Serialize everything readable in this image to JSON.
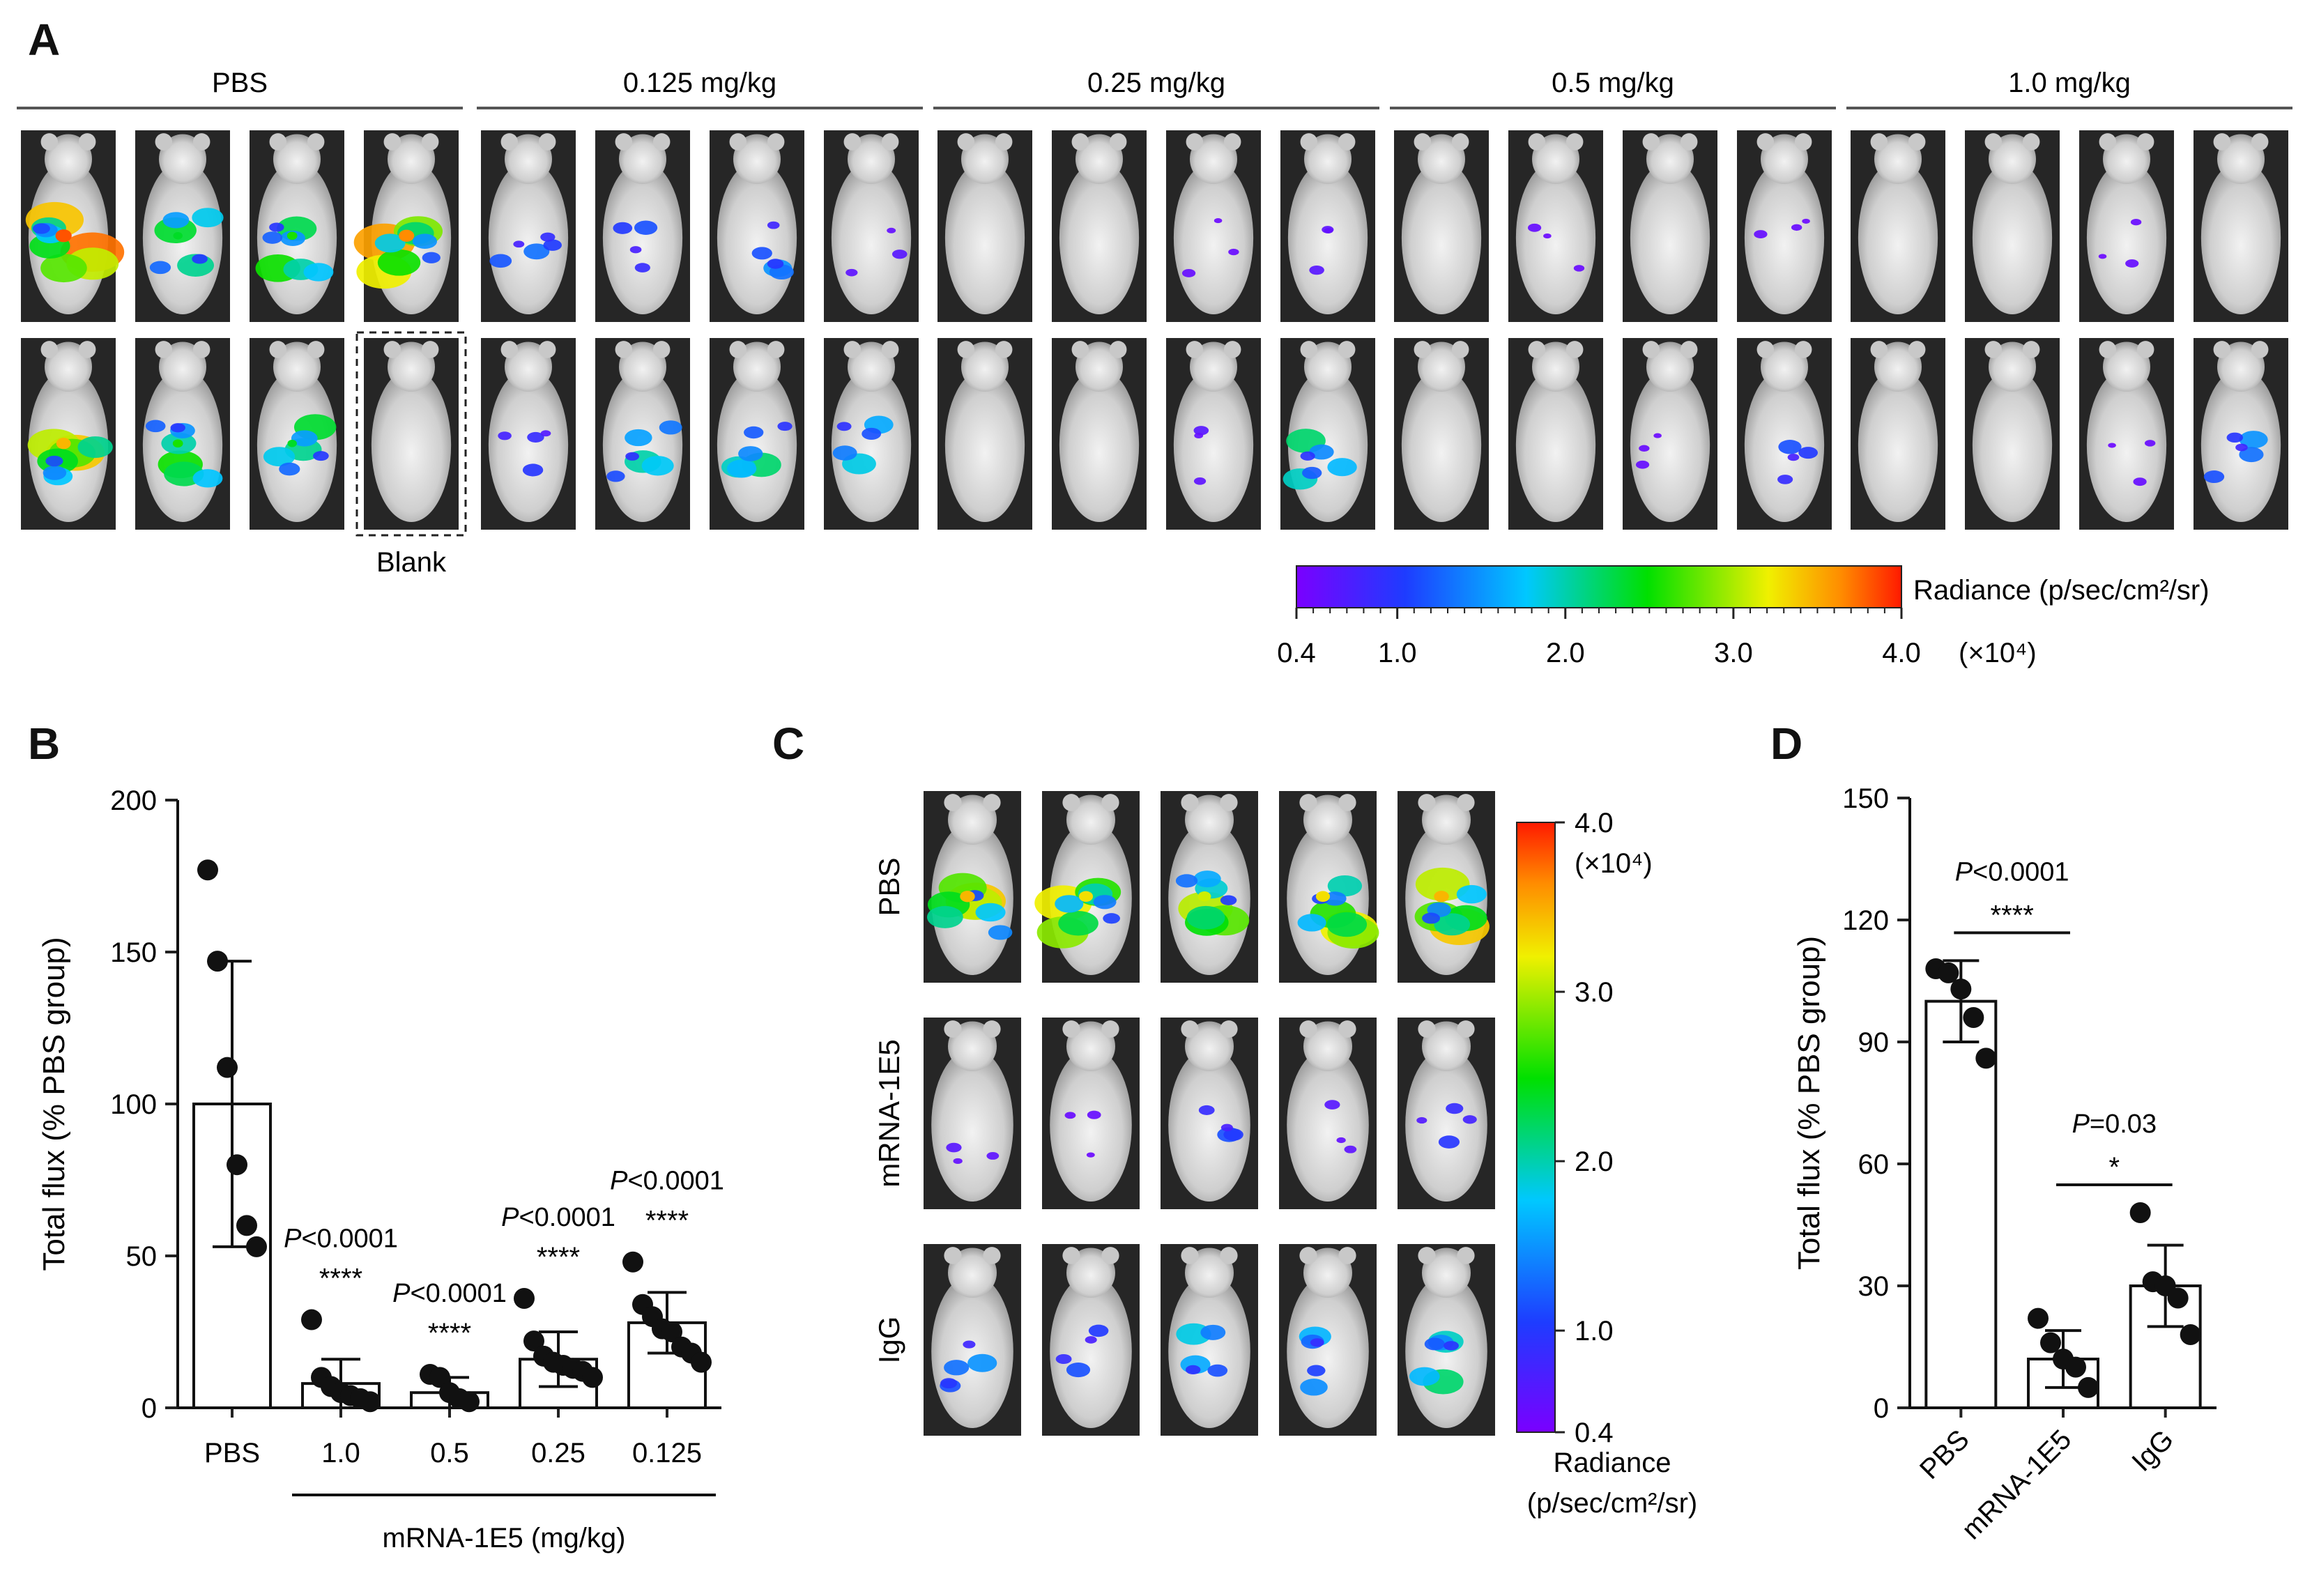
{
  "panels": {
    "A": "A",
    "B": "B",
    "C": "C",
    "D": "D"
  },
  "chart_data": [
    {
      "panel": "A",
      "type": "heatmap",
      "description_label": "bioluminescence imaging grid",
      "groups": [
        "PBS",
        "0.125 mg/kg",
        "0.25 mg/kg",
        "0.5 mg/kg",
        "1.0 mg/kg"
      ],
      "mice_per_row": 4,
      "rows": 2,
      "intensity": [
        [
          [
            0.95,
            0.55,
            0.6,
            0.9
          ],
          [
            0.25,
            0.2,
            0.3,
            0.05
          ],
          [
            0.0,
            0.0,
            0.02,
            0.05
          ],
          [
            0.0,
            0.02,
            0.0,
            0.02
          ],
          [
            0.0,
            0.0,
            0.02,
            0.0
          ]
        ],
        [
          [
            0.85,
            0.6,
            0.55,
            0.0
          ],
          [
            0.15,
            0.45,
            0.5,
            0.4
          ],
          [
            0.0,
            0.0,
            0.05,
            0.5
          ],
          [
            0.0,
            0.0,
            0.02,
            0.2
          ],
          [
            0.0,
            0.0,
            0.02,
            0.3
          ]
        ]
      ],
      "blank_label": "Blank",
      "colorbar": {
        "label": "Radiance (p/sec/cm²/sr)",
        "ticks": [
          "0.4",
          "1.0",
          "2.0",
          "3.0",
          "4.0"
        ],
        "tick_values": [
          0.4,
          1.0,
          2.0,
          3.0,
          4.0
        ],
        "range": [
          0.4,
          4.0
        ],
        "multiplier": "(×10⁴)"
      }
    },
    {
      "panel": "B",
      "type": "bar",
      "categories": [
        "PBS",
        "1.0",
        "0.5",
        "0.25",
        "0.125"
      ],
      "values": [
        100,
        8,
        5,
        16,
        28
      ],
      "errors": [
        47,
        8,
        5,
        9,
        10
      ],
      "points": [
        [
          177,
          147,
          112,
          80,
          60,
          53
        ],
        [
          29,
          10,
          7,
          5,
          4,
          3,
          2
        ],
        [
          11,
          10,
          5,
          3,
          2
        ],
        [
          36,
          22,
          17,
          15,
          14,
          13,
          12,
          10
        ],
        [
          48,
          34,
          30,
          26,
          25,
          20,
          18,
          15
        ]
      ],
      "annotations": [
        {
          "p": "<0.0001",
          "stars": "****"
        },
        {
          "p": "<0.0001",
          "stars": "****"
        },
        {
          "p": "<0.0001",
          "stars": "****"
        },
        {
          "p": "<0.0001",
          "stars": "****"
        }
      ],
      "p_prefix": "P",
      "ylabel": "Total flux (% PBS group)",
      "xlabel": "mRNA-1E5 (mg/kg)",
      "ylim": [
        0,
        200
      ],
      "yticks": [
        "0",
        "50",
        "100",
        "150",
        "200"
      ],
      "ytick_values": [
        0,
        50,
        100,
        150,
        200
      ]
    },
    {
      "panel": "C",
      "type": "heatmap",
      "description_label": "bioluminescence imaging grid",
      "rows": [
        "PBS",
        "mRNA-1E5",
        "IgG"
      ],
      "intensity": [
        [
          0.85,
          0.8,
          0.75,
          0.8,
          0.85
        ],
        [
          0.05,
          0.02,
          0.2,
          0.05,
          0.15
        ],
        [
          0.3,
          0.2,
          0.4,
          0.35,
          0.5
        ]
      ],
      "colorbar": {
        "label_line1": "Radiance",
        "label_line2": "(p/sec/cm²/sr)",
        "ticks": [
          "4.0",
          "3.0",
          "2.0",
          "1.0",
          "0.4"
        ],
        "tick_values": [
          4.0,
          3.0,
          2.0,
          1.0,
          0.4
        ],
        "range": [
          0.4,
          4.0
        ],
        "multiplier": "(×10⁴)"
      }
    },
    {
      "panel": "D",
      "type": "bar",
      "categories": [
        "PBS",
        "mRNA-1E5",
        "IgG"
      ],
      "values": [
        100,
        12,
        30
      ],
      "errors": [
        10,
        7,
        10
      ],
      "points": [
        [
          108,
          107,
          103,
          96,
          86
        ],
        [
          22,
          16,
          12,
          10,
          5
        ],
        [
          48,
          31,
          30,
          27,
          18
        ]
      ],
      "comparisons": [
        {
          "from": 0,
          "to": 1,
          "p": "<0.0001",
          "stars": "****"
        },
        {
          "from": 1,
          "to": 2,
          "p": "=0.03",
          "stars": "*"
        }
      ],
      "p_prefix": "P",
      "ylabel": "Total flux (% PBS group)",
      "ylim": [
        0,
        150
      ],
      "yticks": [
        "0",
        "30",
        "60",
        "90",
        "120",
        "150"
      ],
      "ytick_values": [
        0,
        30,
        60,
        90,
        120,
        150
      ]
    }
  ]
}
